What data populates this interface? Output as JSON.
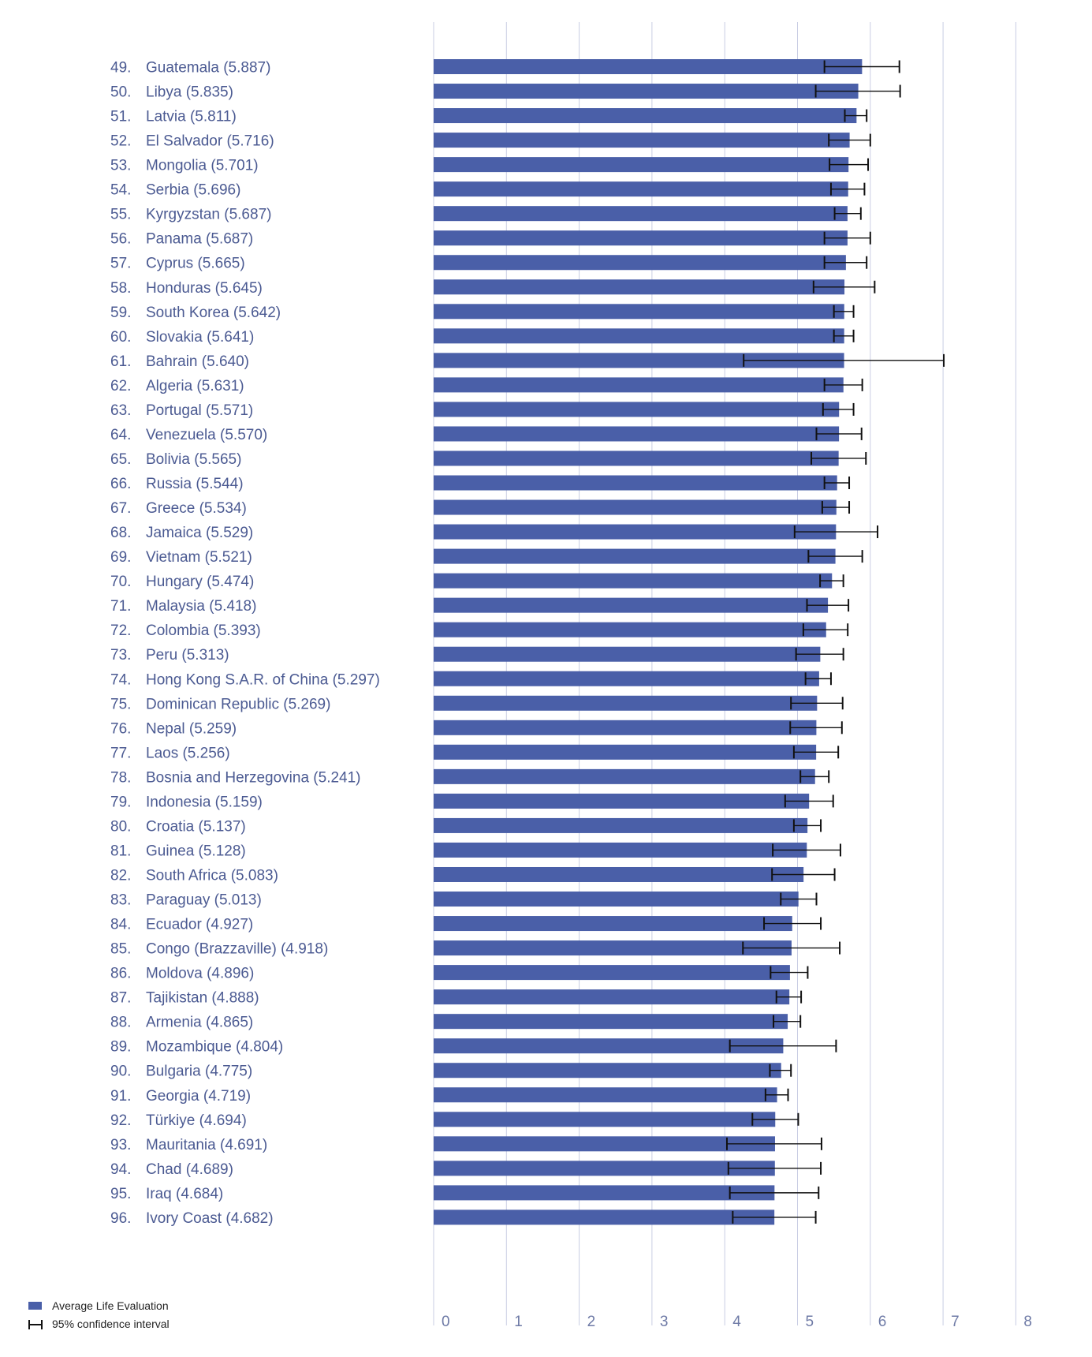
{
  "chart_data": {
    "type": "bar",
    "orientation": "horizontal",
    "xlim": [
      0,
      8
    ],
    "xticks": [
      "0",
      "1",
      "2",
      "3",
      "4",
      "5",
      "6",
      "7",
      "8"
    ],
    "grid": true,
    "legend_placement": "bottom-left",
    "legend": [
      "Average Life Evaluation",
      "95% confidence interval"
    ],
    "colors": {
      "bar": "#4a5fa8",
      "ci": "#111111",
      "grid": "#c9cde3",
      "label": "#4b5a92"
    },
    "rows": [
      {
        "rank": "49.",
        "country": "Guatemala (5.887)",
        "value": 5.887,
        "ci": [
          5.37,
          6.4
        ]
      },
      {
        "rank": "50.",
        "country": "Libya (5.835)",
        "value": 5.835,
        "ci": [
          5.25,
          6.41
        ]
      },
      {
        "rank": "51.",
        "country": "Latvia (5.811)",
        "value": 5.811,
        "ci": [
          5.65,
          5.95
        ]
      },
      {
        "rank": "52.",
        "country": "El Salvador (5.716)",
        "value": 5.716,
        "ci": [
          5.43,
          6.0
        ]
      },
      {
        "rank": "53.",
        "country": "Mongolia (5.701)",
        "value": 5.701,
        "ci": [
          5.44,
          5.97
        ]
      },
      {
        "rank": "54.",
        "country": "Serbia (5.696)",
        "value": 5.696,
        "ci": [
          5.46,
          5.92
        ]
      },
      {
        "rank": "55.",
        "country": "Kyrgyzstan (5.687)",
        "value": 5.687,
        "ci": [
          5.51,
          5.87
        ]
      },
      {
        "rank": "56.",
        "country": "Panama (5.687)",
        "value": 5.687,
        "ci": [
          5.37,
          6.0
        ]
      },
      {
        "rank": "57.",
        "country": "Cyprus (5.665)",
        "value": 5.665,
        "ci": [
          5.37,
          5.95
        ]
      },
      {
        "rank": "58.",
        "country": "Honduras (5.645)",
        "value": 5.645,
        "ci": [
          5.22,
          6.06
        ]
      },
      {
        "rank": "59.",
        "country": "South Korea (5.642)",
        "value": 5.642,
        "ci": [
          5.5,
          5.77
        ]
      },
      {
        "rank": "60.",
        "country": "Slovakia (5.641)",
        "value": 5.641,
        "ci": [
          5.5,
          5.77
        ]
      },
      {
        "rank": "61.",
        "country": "Bahrain (5.640)",
        "value": 5.64,
        "ci": [
          4.26,
          7.01
        ]
      },
      {
        "rank": "62.",
        "country": "Algeria (5.631)",
        "value": 5.631,
        "ci": [
          5.37,
          5.89
        ]
      },
      {
        "rank": "63.",
        "country": "Portugal (5.571)",
        "value": 5.571,
        "ci": [
          5.35,
          5.77
        ]
      },
      {
        "rank": "64.",
        "country": "Venezuela (5.570)",
        "value": 5.57,
        "ci": [
          5.26,
          5.88
        ]
      },
      {
        "rank": "65.",
        "country": "Bolivia (5.565)",
        "value": 5.565,
        "ci": [
          5.19,
          5.94
        ]
      },
      {
        "rank": "66.",
        "country": "Russia (5.544)",
        "value": 5.544,
        "ci": [
          5.37,
          5.71
        ]
      },
      {
        "rank": "67.",
        "country": "Greece (5.534)",
        "value": 5.534,
        "ci": [
          5.34,
          5.71
        ]
      },
      {
        "rank": "68.",
        "country": "Jamaica (5.529)",
        "value": 5.529,
        "ci": [
          4.96,
          6.1
        ]
      },
      {
        "rank": "69.",
        "country": "Vietnam (5.521)",
        "value": 5.521,
        "ci": [
          5.15,
          5.89
        ]
      },
      {
        "rank": "70.",
        "country": "Hungary (5.474)",
        "value": 5.474,
        "ci": [
          5.31,
          5.63
        ]
      },
      {
        "rank": "71.",
        "country": "Malaysia (5.418)",
        "value": 5.418,
        "ci": [
          5.13,
          5.7
        ]
      },
      {
        "rank": "72.",
        "country": "Colombia (5.393)",
        "value": 5.393,
        "ci": [
          5.08,
          5.69
        ]
      },
      {
        "rank": "73.",
        "country": "Peru (5.313)",
        "value": 5.313,
        "ci": [
          4.98,
          5.63
        ]
      },
      {
        "rank": "74.",
        "country": "Hong Kong S.A.R. of China (5.297)",
        "value": 5.297,
        "ci": [
          5.11,
          5.46
        ]
      },
      {
        "rank": "75.",
        "country": "Dominican Republic (5.269)",
        "value": 5.269,
        "ci": [
          4.91,
          5.62
        ]
      },
      {
        "rank": "76.",
        "country": "Nepal (5.259)",
        "value": 5.259,
        "ci": [
          4.9,
          5.61
        ]
      },
      {
        "rank": "77.",
        "country": "Laos (5.256)",
        "value": 5.256,
        "ci": [
          4.95,
          5.56
        ]
      },
      {
        "rank": "78.",
        "country": "Bosnia and Herzegovina (5.241)",
        "value": 5.241,
        "ci": [
          5.04,
          5.43
        ]
      },
      {
        "rank": "79.",
        "country": "Indonesia (5.159)",
        "value": 5.159,
        "ci": [
          4.83,
          5.49
        ]
      },
      {
        "rank": "80.",
        "country": "Croatia (5.137)",
        "value": 5.137,
        "ci": [
          4.95,
          5.32
        ]
      },
      {
        "rank": "81.",
        "country": "Guinea (5.128)",
        "value": 5.128,
        "ci": [
          4.66,
          5.59
        ]
      },
      {
        "rank": "82.",
        "country": "South Africa (5.083)",
        "value": 5.083,
        "ci": [
          4.65,
          5.51
        ]
      },
      {
        "rank": "83.",
        "country": "Paraguay (5.013)",
        "value": 5.013,
        "ci": [
          4.77,
          5.26
        ]
      },
      {
        "rank": "84.",
        "country": "Ecuador (4.927)",
        "value": 4.927,
        "ci": [
          4.54,
          5.32
        ]
      },
      {
        "rank": "85.",
        "country": "Congo (Brazzaville) (4.918)",
        "value": 4.918,
        "ci": [
          4.25,
          5.58
        ]
      },
      {
        "rank": "86.",
        "country": "Moldova (4.896)",
        "value": 4.896,
        "ci": [
          4.63,
          5.14
        ]
      },
      {
        "rank": "87.",
        "country": "Tajikistan (4.888)",
        "value": 4.888,
        "ci": [
          4.71,
          5.05
        ]
      },
      {
        "rank": "88.",
        "country": "Armenia (4.865)",
        "value": 4.865,
        "ci": [
          4.67,
          5.04
        ]
      },
      {
        "rank": "89.",
        "country": "Mozambique (4.804)",
        "value": 4.804,
        "ci": [
          4.07,
          5.53
        ]
      },
      {
        "rank": "90.",
        "country": "Bulgaria (4.775)",
        "value": 4.775,
        "ci": [
          4.62,
          4.91
        ]
      },
      {
        "rank": "91.",
        "country": "Georgia (4.719)",
        "value": 4.719,
        "ci": [
          4.56,
          4.87
        ]
      },
      {
        "rank": "92.",
        "country": "Türkiye (4.694)",
        "value": 4.694,
        "ci": [
          4.38,
          5.01
        ]
      },
      {
        "rank": "93.",
        "country": "Mauritania (4.691)",
        "value": 4.691,
        "ci": [
          4.03,
          5.33
        ]
      },
      {
        "rank": "94.",
        "country": "Chad (4.689)",
        "value": 4.689,
        "ci": [
          4.05,
          5.32
        ]
      },
      {
        "rank": "95.",
        "country": "Iraq (4.684)",
        "value": 4.684,
        "ci": [
          4.07,
          5.29
        ]
      },
      {
        "rank": "96.",
        "country": "Ivory Coast (4.682)",
        "value": 4.682,
        "ci": [
          4.11,
          5.25
        ]
      }
    ]
  }
}
